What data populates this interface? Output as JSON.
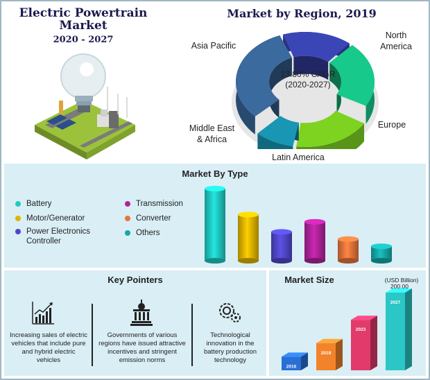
{
  "hero": {
    "title": "Electric Powertrain Market",
    "years": "2020 - 2027"
  },
  "region": {
    "title": "Market by Region, 2019",
    "cagr_line1": "13.80% CAGR",
    "cagr_line2": "(2020-2027)",
    "labels": {
      "north_america": "North America",
      "europe": "Europe",
      "latin_america": "Latin America",
      "mea": "Middle East & Africa",
      "asia_pacific": "Asia Pacific"
    }
  },
  "type_section": {
    "title": "Market By Type",
    "legend": [
      {
        "label": "Battery",
        "color": "#1fc9c2"
      },
      {
        "label": "Motor/Generator",
        "color": "#e0b400"
      },
      {
        "label": "Power Electronics Controller",
        "color": "#5046c8"
      },
      {
        "label": "Transmission",
        "color": "#b0229a"
      },
      {
        "label": "Converter",
        "color": "#e8743a"
      },
      {
        "label": "Others",
        "color": "#17a7a7"
      }
    ]
  },
  "key_pointers": {
    "title": "Key Pointers",
    "items": [
      {
        "text": "Increasing sales of electric vehicles that include pure and hybrid electric vehicles",
        "icon": "growth-chart-icon"
      },
      {
        "text": "Governments of various regions have issued attractive incentives and stringent emission norms",
        "icon": "government-building-icon"
      },
      {
        "text": "Technological innovation in the battery production technology",
        "icon": "innovation-gear-icon"
      }
    ]
  },
  "market_size": {
    "title": "Market Size",
    "unit": "(USD Billion)",
    "value_label": "200.00",
    "year_labels": [
      "2016",
      "2019",
      "2023",
      "2027"
    ]
  },
  "chart_data": [
    {
      "type": "pie",
      "title": "Market by Region, 2019",
      "categories": [
        "North America",
        "Europe",
        "Latin America",
        "Middle East & Africa",
        "Asia Pacific"
      ],
      "values": [
        17,
        22,
        19,
        10,
        32
      ],
      "colors": [
        "#3b46b6",
        "#17c98a",
        "#7ed321",
        "#1896b3",
        "#3a6a9e"
      ]
    },
    {
      "type": "bar",
      "title": "Market By Type",
      "categories": [
        "Battery",
        "Motor/Generator",
        "Power Electronics Controller",
        "Transmission",
        "Converter",
        "Others"
      ],
      "values": [
        100,
        64,
        40,
        54,
        30,
        20
      ],
      "colors": [
        "#1fc9c2",
        "#e0b400",
        "#5046c8",
        "#b0229a",
        "#e8743a",
        "#17a7a7"
      ]
    },
    {
      "type": "bar",
      "title": "Market Size",
      "ylabel": "(USD Billion)",
      "categories": [
        "2016",
        "2019",
        "2023",
        "2027"
      ],
      "values": [
        35,
        70,
        130,
        200
      ],
      "data_labels": [
        "",
        "",
        "",
        "200.00"
      ],
      "colors": [
        "#2a6fd6",
        "#f3832b",
        "#e23a6b",
        "#2bc6c6"
      ]
    }
  ]
}
